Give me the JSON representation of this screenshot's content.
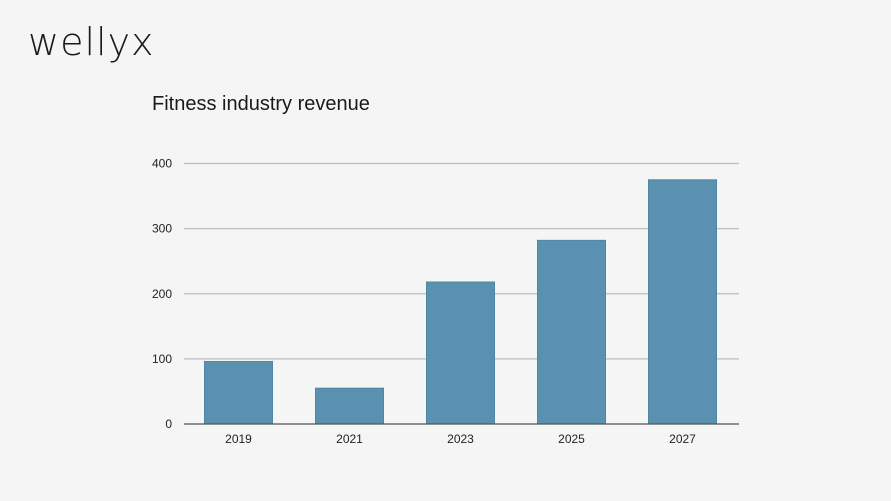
{
  "logo": "wellyx",
  "chart_data": {
    "type": "bar",
    "title": "Fitness industry revenue",
    "categories": [
      "2019",
      "2021",
      "2023",
      "2025",
      "2027"
    ],
    "values": [
      96,
      55,
      218,
      282,
      375
    ],
    "xlabel": "",
    "ylabel": "",
    "ylim": [
      0,
      400
    ],
    "yticks": [
      0,
      100,
      200,
      300,
      400
    ],
    "grid": true,
    "bar_color": "#5a91b0",
    "grid_color": "#bdbdbd"
  }
}
